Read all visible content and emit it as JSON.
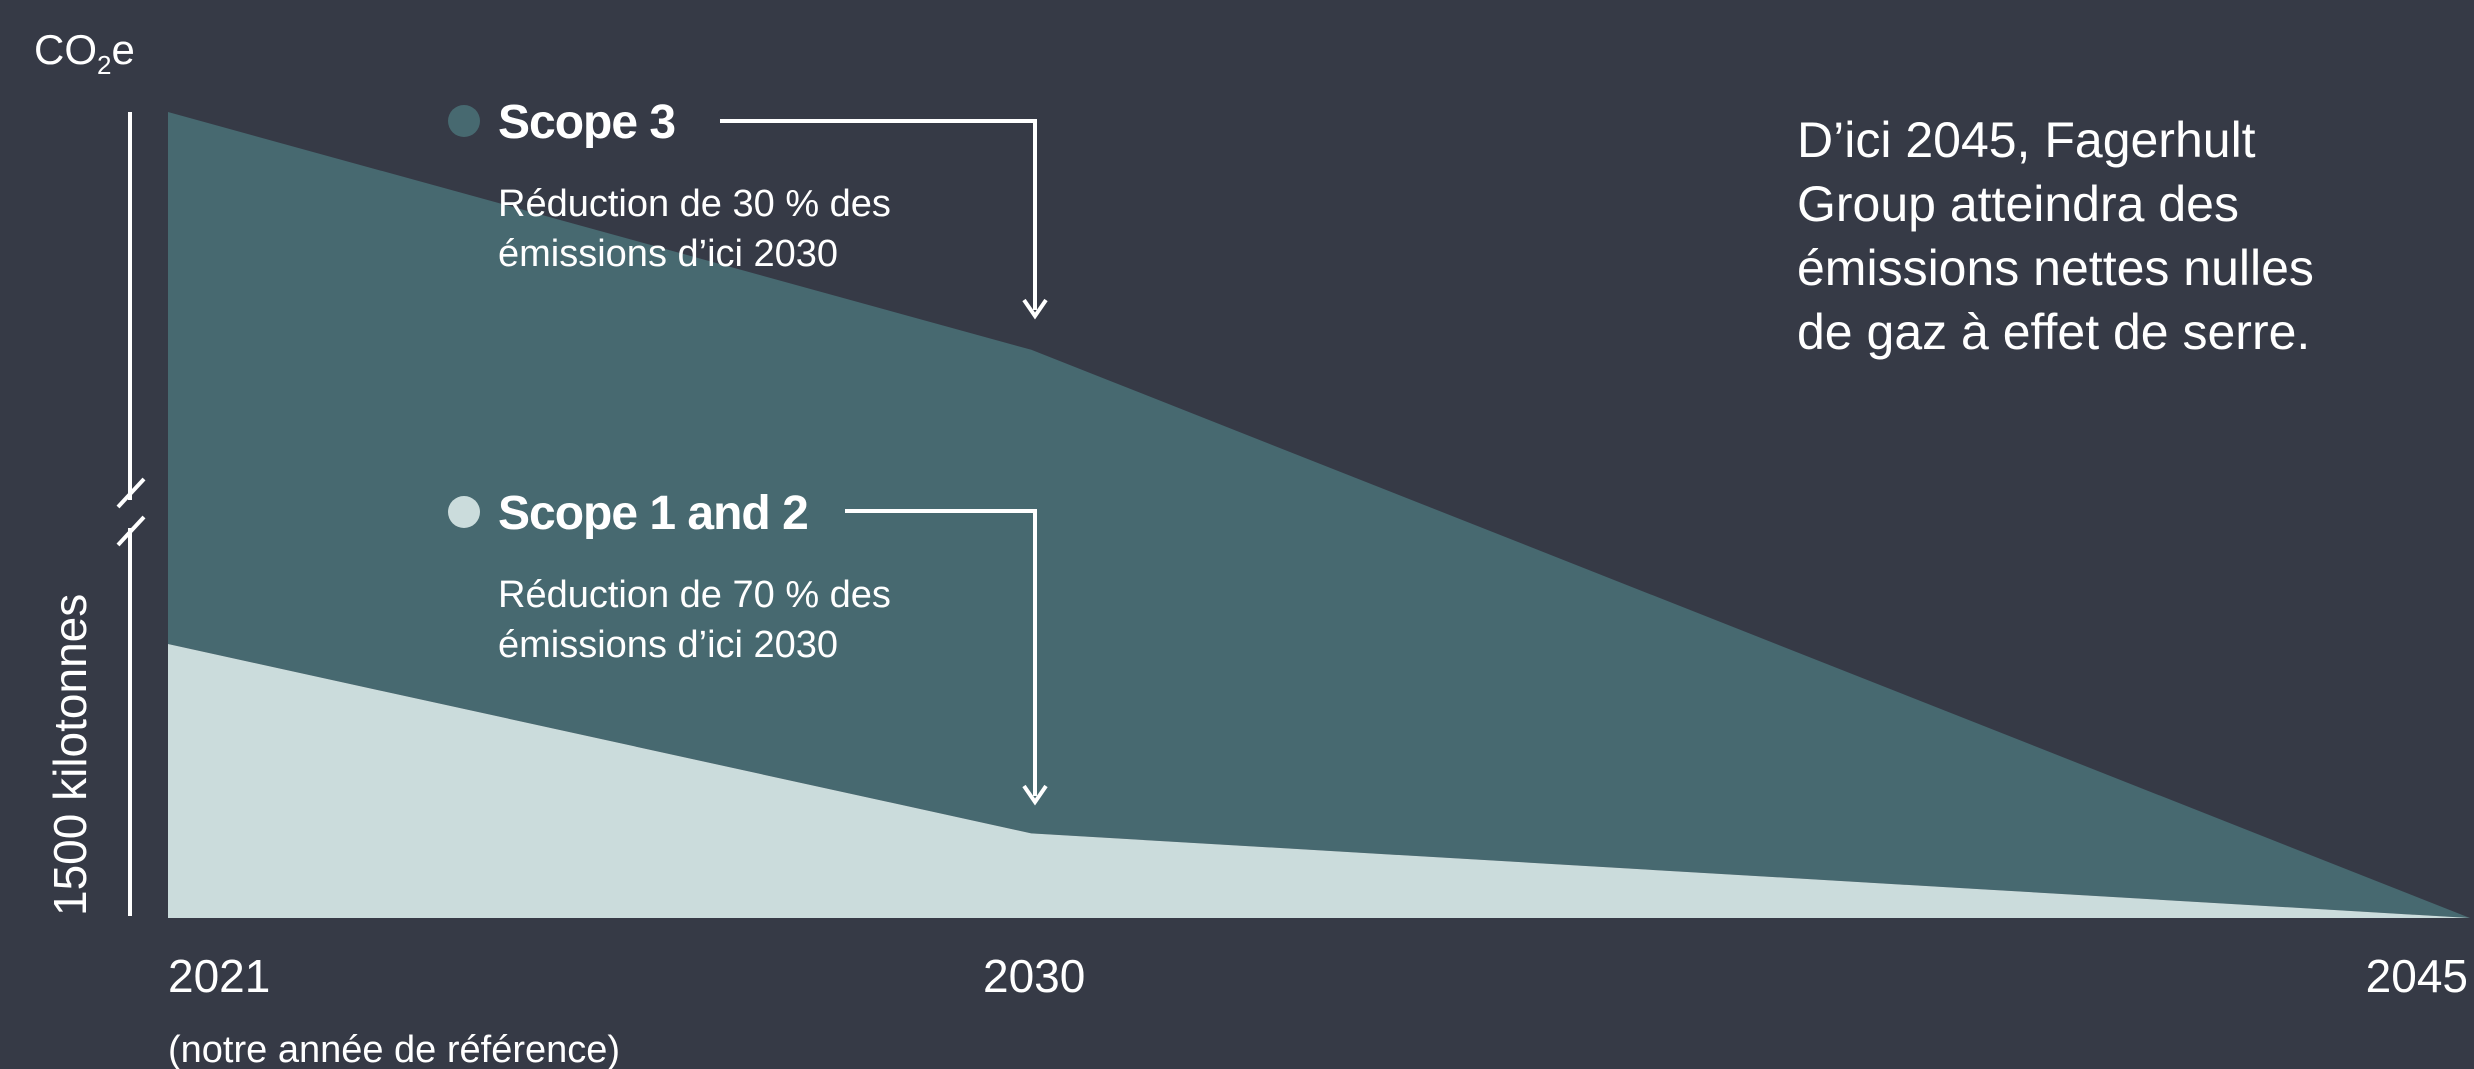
{
  "colors": {
    "background": "#363a46",
    "scope3": "#476970",
    "scope12": "#cbdcdc",
    "text": "#ffffff"
  },
  "unit_label": {
    "base": "CO",
    "sub": "2",
    "suffix": "e"
  },
  "side_note": [
    "D’ici 2045, Fagerhult",
    "Group atteindra des",
    "émissions nettes nulles",
    "de gaz à effet de serre."
  ],
  "chart_data": {
    "type": "area",
    "stacked": true,
    "x": [
      2021,
      2030,
      2045
    ],
    "x_tick_labels": [
      "2021",
      "2030",
      "2045"
    ],
    "x_note": "(notre année de référence)",
    "ylabel": "1500 kilotonnes",
    "axis_break": true,
    "series": [
      {
        "name": "Scope 1 and 2",
        "values": [
          34,
          10.5,
          0
        ],
        "color": "#cbdcdc",
        "annotation_title": "Scope 1 and 2",
        "annotation_lines": [
          "Réduction de 70 % des",
          "émissions d’ici 2030"
        ]
      },
      {
        "name": "Scope 3",
        "values": [
          66,
          60,
          0
        ],
        "color": "#476970",
        "annotation_title": "Scope 3",
        "annotation_lines": [
          "Réduction de 30 % des",
          "émissions d’ici 2030"
        ]
      }
    ],
    "ylim": [
      0,
      100
    ]
  }
}
